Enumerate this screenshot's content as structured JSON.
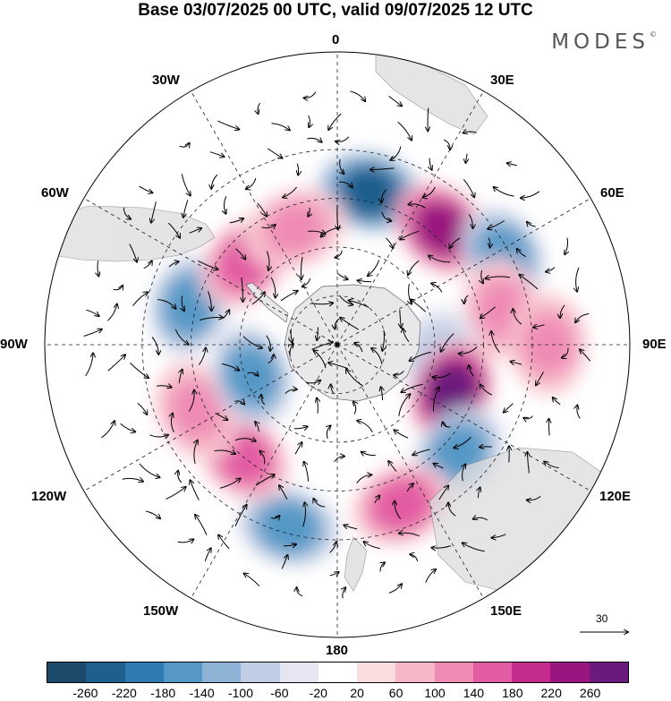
{
  "title": "Base 03/07/2025 00 UTC, valid 09/07/2025 12 UTC",
  "brand": "MODES",
  "brand_mark": "©",
  "longitude_labels": {
    "lon_0": "0",
    "lon_30e": "30E",
    "lon_60e": "60E",
    "lon_90e": "90E",
    "lon_120e": "120E",
    "lon_150e": "150E",
    "lon_180": "180",
    "lon_150w": "150W",
    "lon_120w": "120W",
    "lon_90w": "90W",
    "lon_60w": "60W",
    "lon_30w": "30W"
  },
  "vector_scale_label": "30",
  "colorbar": {
    "colors": [
      "#1c4a6b",
      "#1f5f8e",
      "#2f7ab1",
      "#5598c6",
      "#8db3d6",
      "#c0cde4",
      "#e6e6f2",
      "#ffffff",
      "#fbdde0",
      "#f6b8c8",
      "#ef8bb5",
      "#e25ca3",
      "#c52b8c",
      "#9a157f",
      "#6a1a7d"
    ],
    "ticks": [
      "-260",
      "-220",
      "-180",
      "-140",
      "-100",
      "-60",
      "-20",
      "20",
      "60",
      "100",
      "140",
      "180",
      "220",
      "260"
    ]
  },
  "field_anomalies": [
    {
      "lon": 12,
      "lat": -42,
      "value": -240
    },
    {
      "lon": 42,
      "lat": -42,
      "value": 230
    },
    {
      "lon": 62,
      "lat": -32,
      "value": -150
    },
    {
      "lon": 78,
      "lat": -38,
      "value": 120
    },
    {
      "lon": 98,
      "lat": -58,
      "value": -100
    },
    {
      "lon": 112,
      "lat": -52,
      "value": 260
    },
    {
      "lon": 132,
      "lat": -40,
      "value": -170
    },
    {
      "lon": 158,
      "lat": -37,
      "value": 140
    },
    {
      "lon": -165,
      "lat": -32,
      "value": -170
    },
    {
      "lon": -140,
      "lat": -45,
      "value": 140
    },
    {
      "lon": -115,
      "lat": -42,
      "value": 120
    },
    {
      "lon": -110,
      "lat": -62,
      "value": -170
    },
    {
      "lon": -75,
      "lat": -43,
      "value": -170
    },
    {
      "lon": -48,
      "lat": -52,
      "value": 170
    },
    {
      "lon": -20,
      "lat": -52,
      "value": 120
    },
    {
      "lon": 90,
      "lat": -25,
      "value": 120
    }
  ],
  "icons": [
    "wind-arrow-icon"
  ]
}
